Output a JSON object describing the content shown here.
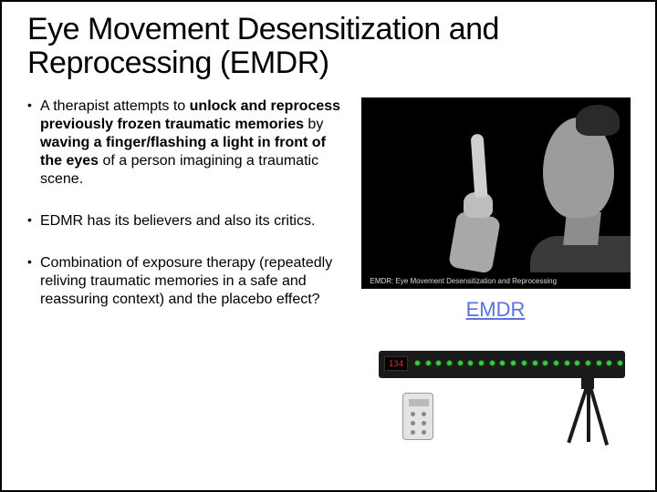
{
  "title": "Eye Movement Desensitization and Reprocessing (EMDR)",
  "bullets": {
    "b1_prefix": "A therapist attempts to ",
    "b1_bold": "unlock and reprocess previously frozen traumatic memories",
    "b1_mid": " by ",
    "b1_bold2": "waving a finger/flashing a light in front of the eyes",
    "b1_suffix": " of a person imagining a traumatic scene.",
    "b2": "EDMR has its believers and also its critics.",
    "b3": "Combination of exposure therapy (repeatedly reliving traumatic memories in a safe and reassuring context) and the placebo effect?"
  },
  "photo_caption": "EMDR: Eye Movement Desensitization and Reprocessing",
  "link_label": "EMDR",
  "device": {
    "display": "134",
    "led_count": 20,
    "led_color": "#35d03a"
  },
  "colors": {
    "link": "#5b73d9",
    "text": "#000000",
    "bg": "#ffffff"
  }
}
